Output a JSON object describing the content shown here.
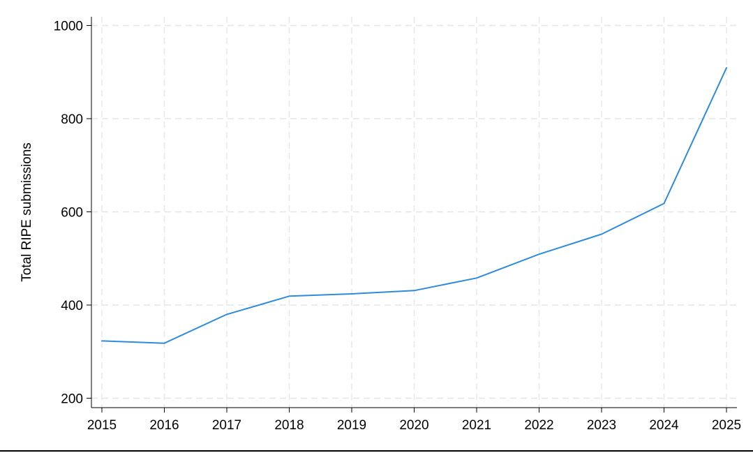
{
  "chart_data": {
    "type": "line",
    "title": "",
    "xlabel": "",
    "ylabel": "Total RIPE submissions",
    "x": [
      2015,
      2016,
      2017,
      2018,
      2019,
      2020,
      2021,
      2022,
      2023,
      2024,
      2025
    ],
    "series": [
      {
        "values": [
          323,
          318,
          380,
          419,
          424,
          431,
          458,
          509,
          552,
          618,
          909
        ]
      }
    ],
    "xlim": [
      2015,
      2025
    ],
    "ylim": [
      200,
      1000
    ],
    "yticks": [
      200,
      400,
      600,
      800,
      1000
    ],
    "xticks": [
      2015,
      2016,
      2017,
      2018,
      2019,
      2020,
      2021,
      2022,
      2023,
      2024,
      2025
    ],
    "grid": true,
    "legend": "none",
    "line_color": "#2e8bdc"
  }
}
